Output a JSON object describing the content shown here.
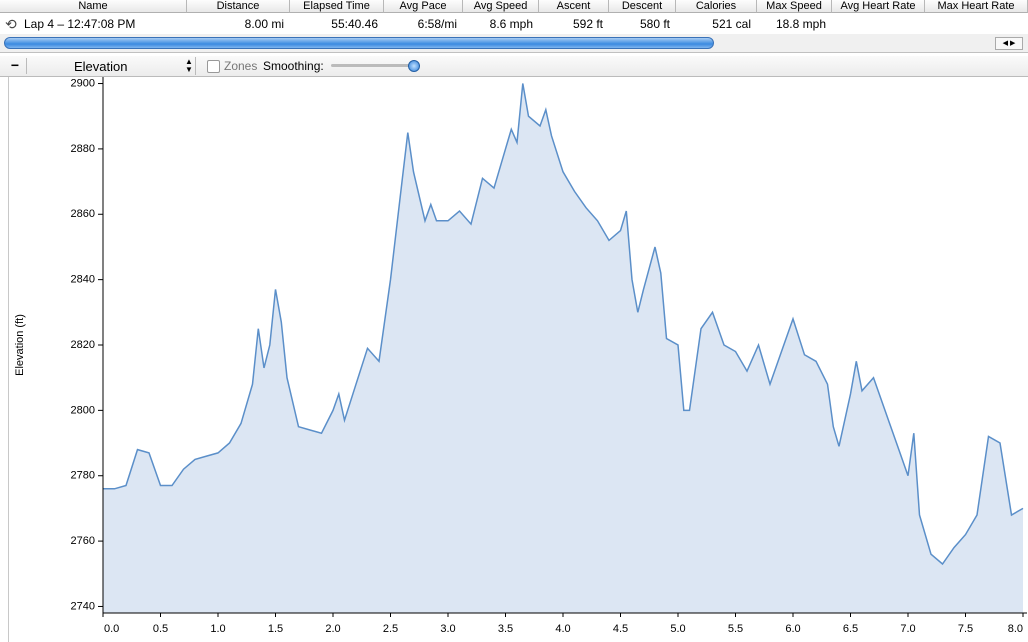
{
  "table": {
    "columns": [
      "Name",
      "Distance",
      "Elapsed Time",
      "Avg Pace",
      "Avg Speed",
      "Ascent",
      "Descent",
      "Calories",
      "Max Speed",
      "Avg Heart Rate",
      "Max Heart Rate"
    ],
    "rows": [
      [
        "Lap 4 – 12:47:08 PM",
        "8.00 mi",
        "55:40.46",
        "6:58/mi",
        "8.6 mph",
        "592 ft",
        "580 ft",
        "521 cal",
        "18.8 mph",
        null,
        null
      ]
    ]
  },
  "toolbar": {
    "metric": "Elevation",
    "zones": "Zones",
    "smoothing": "Smoothing:"
  },
  "chart_data": {
    "type": "area",
    "y_label": "Elevation (ft)",
    "x": [
      0.0,
      0.1,
      0.2,
      0.3,
      0.4,
      0.5,
      0.6,
      0.7,
      0.8,
      0.9,
      1.0,
      1.1,
      1.2,
      1.3,
      1.35,
      1.4,
      1.45,
      1.5,
      1.55,
      1.6,
      1.7,
      1.8,
      1.9,
      2.0,
      2.05,
      2.1,
      2.2,
      2.3,
      2.4,
      2.5,
      2.6,
      2.65,
      2.7,
      2.8,
      2.85,
      2.9,
      3.0,
      3.1,
      3.2,
      3.3,
      3.4,
      3.5,
      3.55,
      3.6,
      3.65,
      3.7,
      3.8,
      3.85,
      3.9,
      4.0,
      4.1,
      4.2,
      4.3,
      4.4,
      4.5,
      4.55,
      4.6,
      4.65,
      4.7,
      4.8,
      4.85,
      4.9,
      5.0,
      5.05,
      5.1,
      5.2,
      5.3,
      5.4,
      5.5,
      5.6,
      5.7,
      5.8,
      5.9,
      6.0,
      6.1,
      6.2,
      6.3,
      6.35,
      6.4,
      6.5,
      6.55,
      6.6,
      6.7,
      6.8,
      6.9,
      7.0,
      7.05,
      7.1,
      7.2,
      7.3,
      7.4,
      7.5,
      7.6,
      7.7,
      7.8,
      7.9,
      8.0
    ],
    "series": [
      {
        "color": "#5b8fc9",
        "fill": "#dce6f3",
        "values": [
          2776,
          2776,
          2777,
          2788,
          2787,
          2777,
          2777,
          2782,
          2785,
          2786,
          2787,
          2790,
          2796,
          2808,
          2825,
          2813,
          2820,
          2837,
          2827,
          2810,
          2795,
          2794,
          2793,
          2800,
          2805,
          2797,
          2808,
          2819,
          2815,
          2840,
          2870,
          2885,
          2873,
          2858,
          2863,
          2858,
          2858,
          2861,
          2857,
          2871,
          2868,
          2880,
          2886,
          2882,
          2900,
          2890,
          2887,
          2892,
          2884,
          2873,
          2867,
          2862,
          2858,
          2852,
          2855,
          2861,
          2840,
          2830,
          2837,
          2850,
          2842,
          2822,
          2820,
          2800,
          2800,
          2825,
          2830,
          2820,
          2818,
          2812,
          2820,
          2808,
          2818,
          2828,
          2817,
          2815,
          2808,
          2795,
          2789,
          2805,
          2815,
          2806,
          2810,
          2800,
          2790,
          2780,
          2793,
          2768,
          2756,
          2753,
          2758,
          2762,
          2768,
          2792,
          2790,
          2768,
          2770
        ]
      }
    ],
    "xlim": [
      0,
      8
    ],
    "xticks": [
      {
        "value": 0,
        "label": "0.0"
      },
      0.5,
      {
        "value": 1,
        "label": "1.0"
      },
      1.5,
      {
        "value": 2,
        "label": "2.0"
      },
      2.5,
      {
        "value": 3,
        "label": "3.0"
      },
      3.5,
      {
        "value": 4,
        "label": "4.0"
      },
      4.5,
      {
        "value": 5,
        "label": "5.0"
      },
      5.5,
      {
        "value": 6,
        "label": "6.0"
      },
      6.5,
      {
        "value": 7,
        "label": "7.0"
      },
      7.5,
      {
        "value": 8,
        "label": "8.0"
      }
    ],
    "ylim": [
      2738,
      2902
    ],
    "yticks": [
      2740,
      2760,
      2780,
      2800,
      2820,
      2840,
      2860,
      2880,
      2900
    ]
  }
}
